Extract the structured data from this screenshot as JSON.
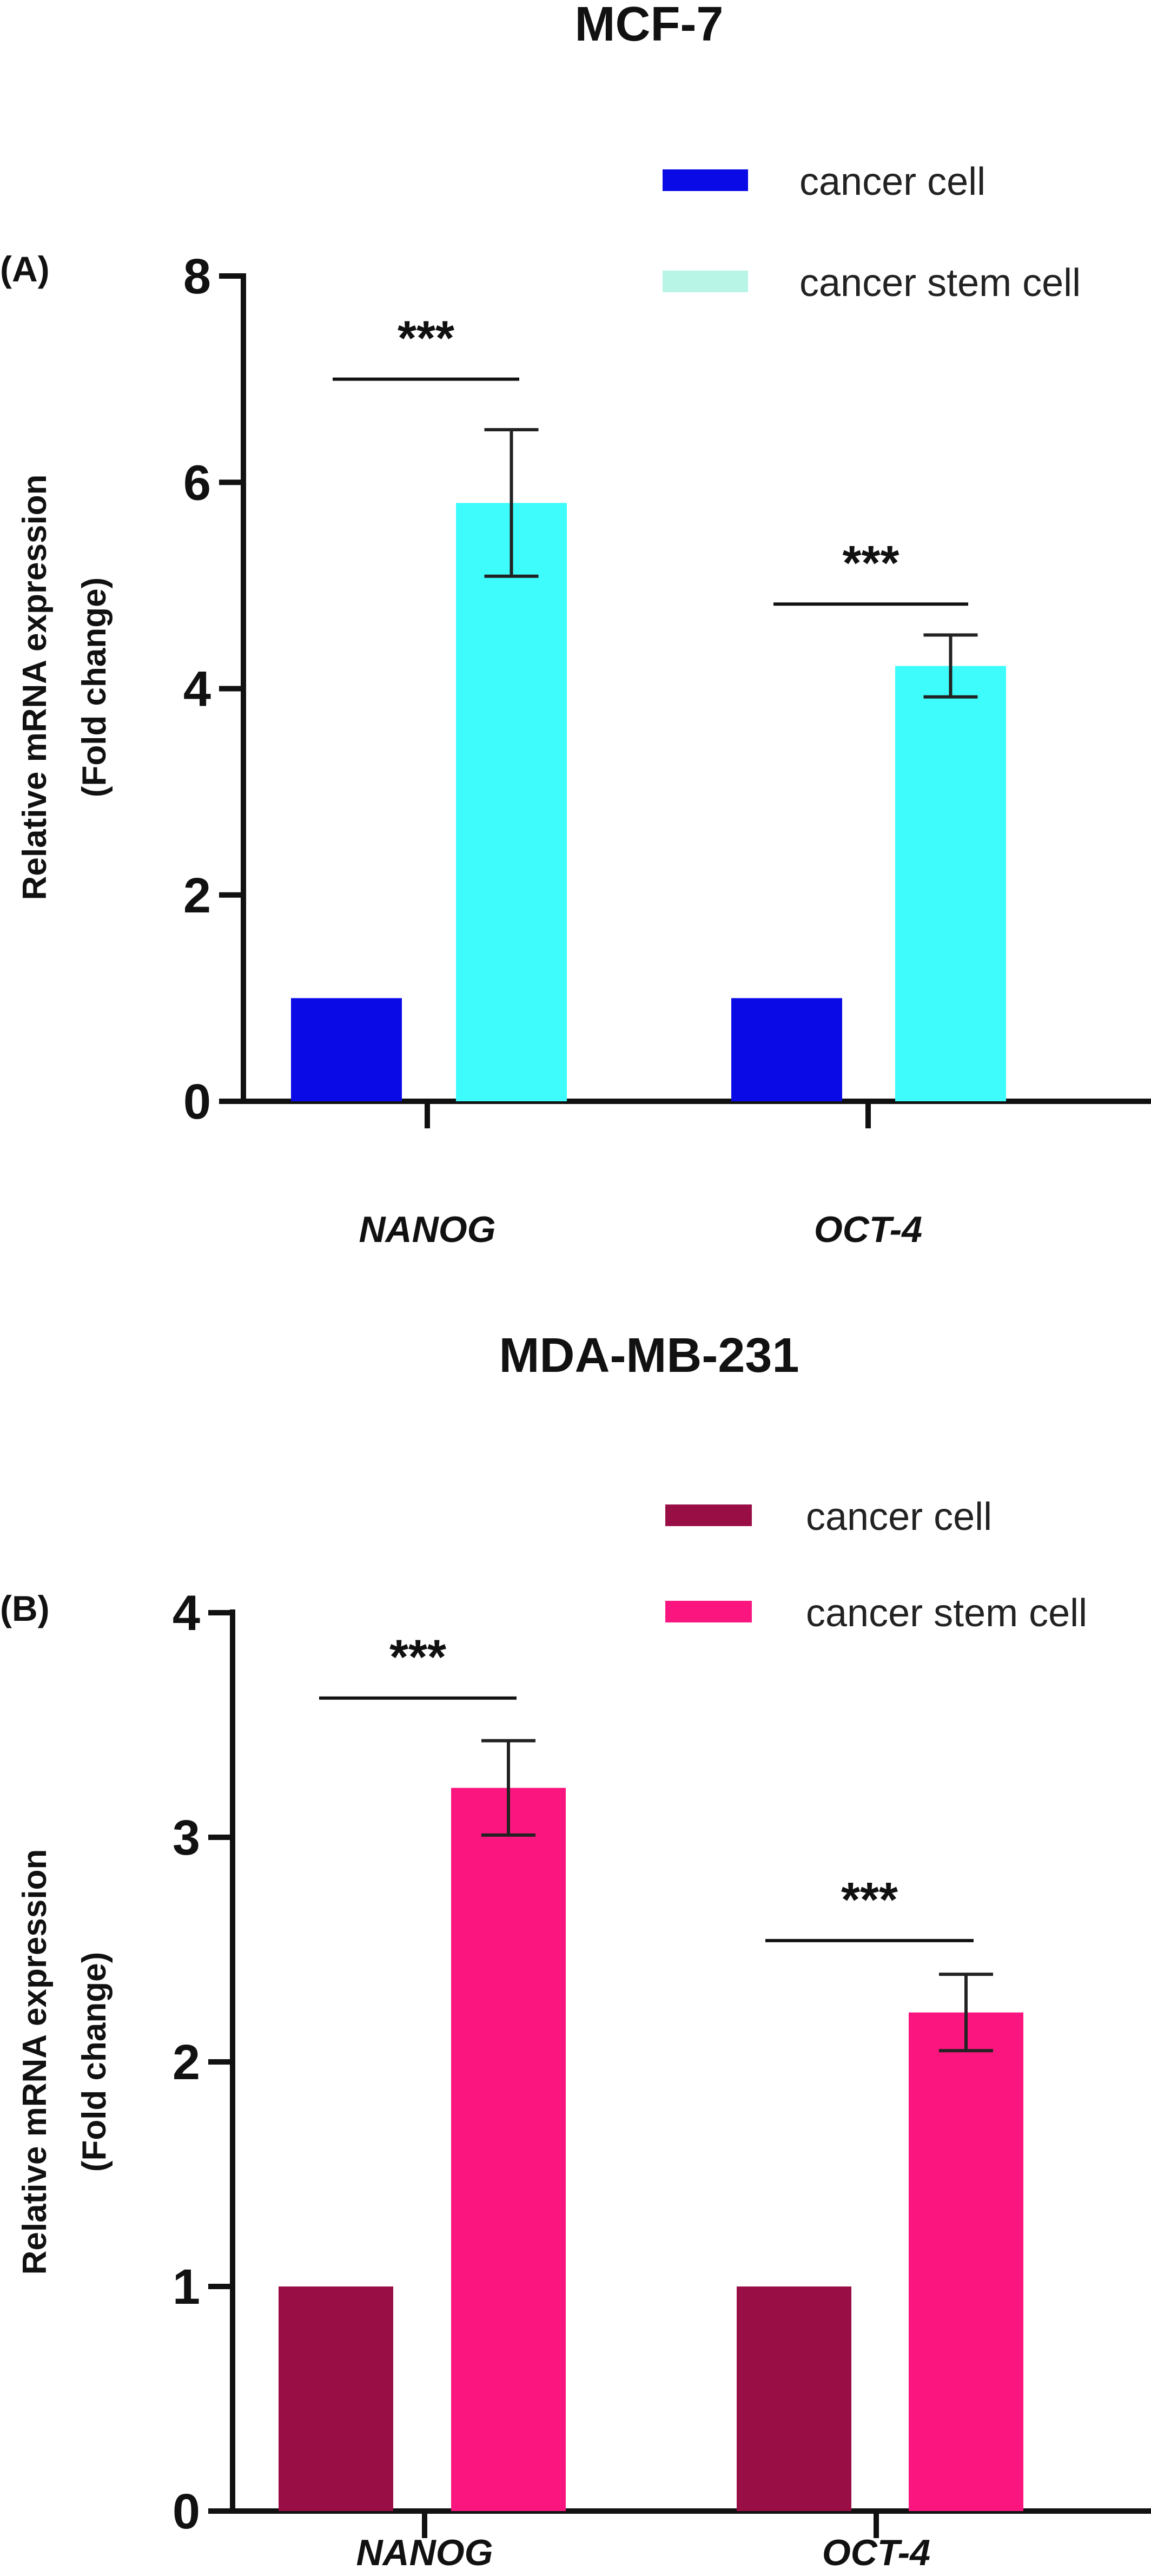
{
  "chart_data": [
    {
      "type": "bar",
      "panel_label": "(A)",
      "title": "MCF-7",
      "categories": [
        "NANOG",
        "OCT-4"
      ],
      "ylabel_lines": [
        "Relative mRNA expression",
        "(Fold change)"
      ],
      "xlabel": "",
      "ylim": [
        0,
        8
      ],
      "yticks": [
        0,
        2,
        4,
        6,
        8
      ],
      "grid": false,
      "legend_position": "top-right",
      "series": [
        {
          "name": "cancer cell",
          "color": "#0a0ae6",
          "values": [
            1.0,
            1.0
          ],
          "errors": [
            0,
            0
          ]
        },
        {
          "name": "cancer stem cell",
          "color": "#3ffcfc",
          "legend_color": "#b8f5e6",
          "values": [
            5.8,
            4.22
          ],
          "errors": [
            0.71,
            0.3
          ]
        }
      ],
      "significance": [
        {
          "category": "NANOG",
          "label": "***",
          "y": 7.0
        },
        {
          "category": "OCT-4",
          "label": "***",
          "y": 4.82
        }
      ]
    },
    {
      "type": "bar",
      "panel_label": "(B)",
      "title": "MDA-MB-231",
      "categories": [
        "NANOG",
        "OCT-4"
      ],
      "ylabel_lines": [
        "Relative mRNA expression",
        "(Fold change)"
      ],
      "xlabel": "",
      "ylim": [
        0,
        4
      ],
      "yticks": [
        0,
        1,
        2,
        3,
        4
      ],
      "grid": false,
      "legend_position": "top-right",
      "series": [
        {
          "name": "cancer cell",
          "color": "#990e45",
          "values": [
            1.0,
            1.0
          ],
          "errors": [
            0,
            0
          ]
        },
        {
          "name": "cancer stem cell",
          "color": "#fa157f",
          "values": [
            3.22,
            2.22
          ],
          "errors": [
            0.21,
            0.17
          ]
        }
      ],
      "significance": [
        {
          "category": "NANOG",
          "label": "***",
          "y": 3.62
        },
        {
          "category": "OCT-4",
          "label": "***",
          "y": 2.54
        }
      ]
    }
  ]
}
